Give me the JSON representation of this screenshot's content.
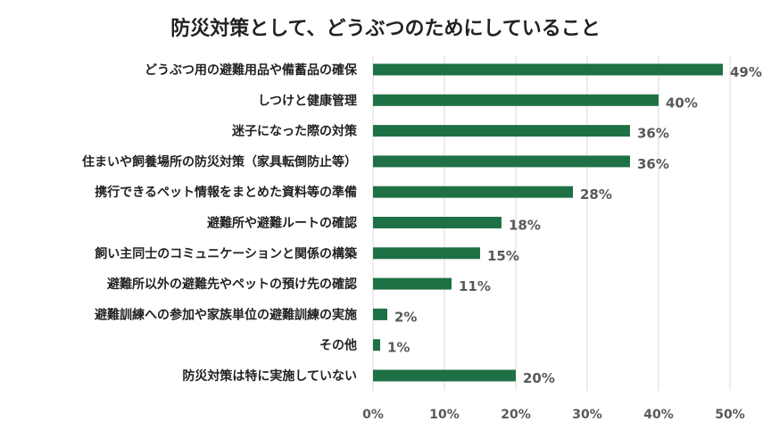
{
  "chart_data": {
    "type": "bar",
    "orientation": "horizontal",
    "title": "防災対策として、どうぶつのためにしていること",
    "categories": [
      "どうぶつ用の避難用品や備蓄品の確保",
      "しつけと健康管理",
      "迷子になった際の対策",
      "住まいや飼養場所の防災対策（家具転倒防止等）",
      "携行できるペット情報をまとめた資料等の準備",
      "避難所や避難ルートの確認",
      "飼い主同士のコミュニケーションと関係の構築",
      "避難所以外の避難先やペットの預け先の確認",
      "避難訓練への参加や家族単位の避難訓練の実施",
      "その他",
      "防災対策は特に実施していない"
    ],
    "values": [
      49,
      40,
      36,
      36,
      28,
      18,
      15,
      11,
      2,
      1,
      20
    ],
    "value_labels": [
      "49%",
      "40%",
      "36%",
      "36%",
      "28%",
      "18%",
      "15%",
      "11%",
      "2%",
      "1%",
      "20%"
    ],
    "xlim": [
      0,
      50
    ],
    "x_ticks": [
      0,
      10,
      20,
      30,
      40,
      50
    ],
    "x_tick_labels": [
      "0%",
      "10%",
      "20%",
      "30%",
      "40%",
      "50%"
    ],
    "grid": true,
    "legend": "none",
    "bar_color": "#1e7145",
    "grid_color": "#d9d9d9"
  }
}
